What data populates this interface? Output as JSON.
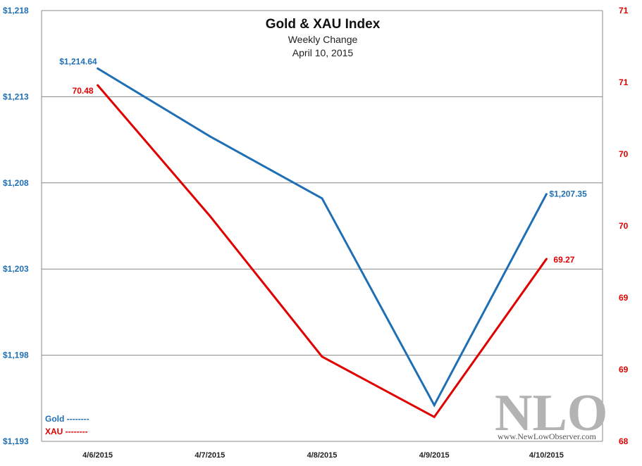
{
  "chart_data": {
    "type": "line",
    "title": "Gold & XAU Index",
    "subtitle": "Weekly Change",
    "date_line": "April 10, 2015",
    "categories": [
      "4/6/2015",
      "4/7/2015",
      "4/8/2015",
      "4/9/2015",
      "4/10/2015"
    ],
    "left_axis": {
      "ylim": [
        1193,
        1218
      ],
      "ticks": [
        1218,
        1213,
        1208,
        1203,
        1198,
        1193
      ],
      "tick_labels": [
        "$1,218",
        "$1,213",
        "$1,208",
        "$1,203",
        "$1,198",
        "$1,193"
      ],
      "color": "#1f6fb5"
    },
    "right_axis": {
      "ylim": [
        68,
        71
      ],
      "ticks": [
        71,
        70.5,
        70,
        69.5,
        69,
        68.5,
        68
      ],
      "tick_labels": [
        "71",
        "71",
        "70",
        "70",
        "69",
        "69",
        "68"
      ],
      "color": "#e00000"
    },
    "series": [
      {
        "name": "Gold",
        "axis": "left",
        "color": "#1f6fb5",
        "values": [
          1214.64,
          1210.7,
          1207.1,
          1195.1,
          1207.35
        ],
        "labels": [
          "$1,214.64",
          "",
          "",
          "",
          "$1,207.35"
        ]
      },
      {
        "name": "XAU",
        "axis": "right",
        "color": "#e00000",
        "values": [
          70.48,
          69.57,
          68.59,
          68.17,
          69.27
        ],
        "labels": [
          "70.48",
          "",
          "",
          "",
          "69.27"
        ]
      }
    ],
    "grid": true,
    "legend_position": "bottom-left"
  },
  "legend": {
    "gold": "Gold --------",
    "xau": "XAU --------"
  },
  "watermark": {
    "logo": "NLO",
    "url": "www.NewLowObserver.com"
  }
}
